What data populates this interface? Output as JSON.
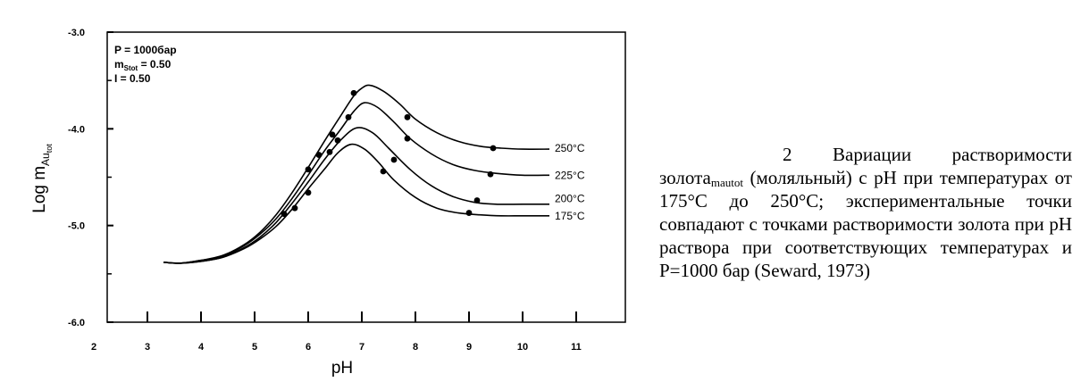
{
  "chart_data": {
    "type": "line",
    "ylabel_main": "Log m",
    "ylabel_sub": "Au",
    "ylabel_subsub": "tot",
    "xlabel": "pH",
    "xlim": [
      2,
      11.6
    ],
    "ylim": [
      -6.0,
      -3.0
    ],
    "xticks": [
      2,
      3,
      4,
      5,
      6,
      7,
      8,
      9,
      10,
      11
    ],
    "yticks": [
      -3.0,
      -4.0,
      -5.0,
      -6.0
    ],
    "ytick_labels": [
      "-3.0",
      "-4.0",
      "-5.0",
      "-6.0"
    ],
    "annotation": {
      "pressure": "P = 1000бар",
      "m_main": "m",
      "m_sub": "Stot",
      "m_value": " = 0.50",
      "ionic": "I = 0.50"
    },
    "grid": false,
    "series": [
      {
        "name": "250°C",
        "label_at": [
          10.5,
          -4.2
        ],
        "x": [
          3.3,
          3.6,
          4.0,
          4.4,
          4.8,
          5.1,
          5.4,
          5.7,
          6.0,
          6.3,
          6.6,
          6.85,
          7.0,
          7.15,
          7.4,
          7.7,
          8.0,
          8.4,
          8.8,
          9.2,
          9.6,
          10.0,
          10.5
        ],
        "y": [
          -5.38,
          -5.39,
          -5.36,
          -5.31,
          -5.2,
          -5.07,
          -4.89,
          -4.66,
          -4.4,
          -4.13,
          -3.87,
          -3.66,
          -3.58,
          -3.55,
          -3.61,
          -3.74,
          -3.9,
          -4.04,
          -4.13,
          -4.18,
          -4.2,
          -4.21,
          -4.21
        ]
      },
      {
        "name": "225°C",
        "label_at": [
          10.5,
          -4.48
        ],
        "x": [
          3.3,
          3.6,
          4.0,
          4.4,
          4.8,
          5.1,
          5.4,
          5.7,
          6.0,
          6.3,
          6.6,
          6.85,
          7.05,
          7.3,
          7.6,
          7.9,
          8.3,
          8.7,
          9.1,
          9.5,
          10.0,
          10.5
        ],
        "y": [
          -5.38,
          -5.39,
          -5.36,
          -5.32,
          -5.21,
          -5.09,
          -4.93,
          -4.72,
          -4.48,
          -4.23,
          -4.01,
          -3.82,
          -3.73,
          -3.78,
          -3.93,
          -4.1,
          -4.26,
          -4.37,
          -4.43,
          -4.46,
          -4.48,
          -4.48
        ]
      },
      {
        "name": "200°C",
        "label_at": [
          10.5,
          -4.72
        ],
        "x": [
          3.3,
          3.6,
          4.0,
          4.4,
          4.8,
          5.1,
          5.4,
          5.7,
          6.0,
          6.3,
          6.6,
          6.9,
          7.2,
          7.5,
          7.9,
          8.3,
          8.7,
          9.1,
          9.5,
          10.0,
          10.5
        ],
        "y": [
          -5.38,
          -5.39,
          -5.37,
          -5.33,
          -5.23,
          -5.12,
          -4.97,
          -4.77,
          -4.55,
          -4.32,
          -4.12,
          -3.99,
          -4.04,
          -4.2,
          -4.42,
          -4.59,
          -4.7,
          -4.76,
          -4.78,
          -4.78,
          -4.78
        ]
      },
      {
        "name": "175°C",
        "label_at": [
          10.5,
          -4.9
        ],
        "x": [
          3.3,
          3.6,
          4.0,
          4.4,
          4.8,
          5.1,
          5.4,
          5.7,
          6.0,
          6.3,
          6.55,
          6.8,
          7.05,
          7.3,
          7.6,
          8.0,
          8.4,
          8.8,
          9.2,
          9.6,
          10.0,
          10.5
        ],
        "y": [
          -5.38,
          -5.39,
          -5.37,
          -5.33,
          -5.24,
          -5.14,
          -5.01,
          -4.83,
          -4.62,
          -4.42,
          -4.25,
          -4.16,
          -4.21,
          -4.34,
          -4.53,
          -4.71,
          -4.82,
          -4.87,
          -4.89,
          -4.9,
          -4.9,
          -4.9
        ]
      }
    ],
    "points": [
      {
        "series": "250°C",
        "x": [
          6.45,
          6.85,
          7.85,
          9.45
        ],
        "y": [
          -4.06,
          -3.63,
          -3.88,
          -4.2
        ]
      },
      {
        "series": "225°C",
        "x": [
          6.2,
          6.75,
          7.85,
          9.4
        ],
        "y": [
          -4.27,
          -3.88,
          -4.1,
          -4.47
        ]
      },
      {
        "series": "200°C",
        "x": [
          6.0,
          6.55,
          7.6,
          9.15
        ],
        "y": [
          -4.42,
          -4.12,
          -4.32,
          -4.74
        ]
      },
      {
        "series": "175°C",
        "x": [
          5.55,
          5.75,
          6.0,
          6.4,
          7.4,
          9.0
        ],
        "y": [
          -4.88,
          -4.82,
          -4.66,
          -4.24,
          -4.44,
          -4.87
        ]
      }
    ]
  },
  "caption": {
    "part1": "2 Вариации растворимости золота",
    "sub": "mautot",
    "part2": " (моляльный) с pH при температурах от 175°С до 250°С; экспериментальные точки совпадают с точками растворимости золота при pH раствора при соответствующих температурах и Р=1000 бар (Seward, 1973)"
  }
}
